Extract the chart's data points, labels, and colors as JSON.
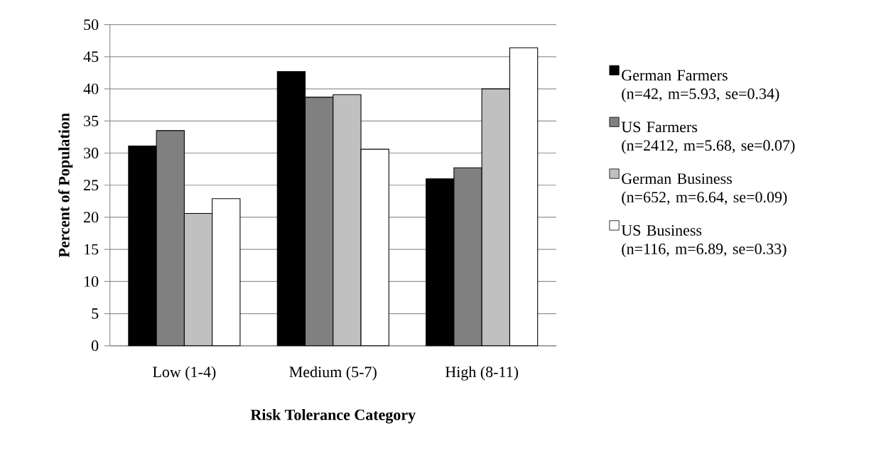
{
  "chart_data": {
    "type": "bar",
    "xlabel": "Risk Tolerance Category",
    "ylabel": "Percent of Population",
    "categories": [
      "Low (1-4)",
      "Medium (5-7)",
      "High (8-11)"
    ],
    "series": [
      {
        "name": "German Farmers\n(n=42, m=5.93, se=0.34)",
        "color": "#000000",
        "values": [
          31.1,
          42.7,
          26.0
        ]
      },
      {
        "name": "US Farmers\n(n=2412, m=5.68, se=0.07)",
        "color": "#808080",
        "values": [
          33.5,
          38.7,
          27.7
        ]
      },
      {
        "name": "German Business\n(n=652, m=6.64, se=0.09)",
        "color": "#c0c0c0",
        "values": [
          20.6,
          39.1,
          40.0
        ]
      },
      {
        "name": "US Business\n(n=116, m=6.89, se=0.33)",
        "color": "#ffffff",
        "values": [
          22.9,
          30.6,
          46.4
        ]
      }
    ],
    "ylim": [
      0,
      50
    ],
    "yticks": [
      0,
      5,
      10,
      15,
      20,
      25,
      30,
      35,
      40,
      45,
      50
    ],
    "grid": "y",
    "legend": "right"
  }
}
